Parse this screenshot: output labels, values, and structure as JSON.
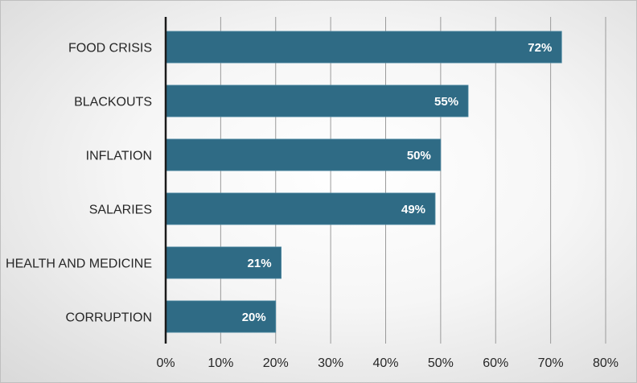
{
  "chart_data": {
    "type": "bar",
    "orientation": "horizontal",
    "title": "",
    "xlabel": "",
    "ylabel": "",
    "categories": [
      "FOOD CRISIS",
      "BLACKOUTS",
      "INFLATION",
      "SALARIES",
      "HEALTH AND MEDICINE",
      "CORRUPTION"
    ],
    "values": [
      72,
      55,
      50,
      49,
      21,
      20
    ],
    "data_labels": [
      "72%",
      "55%",
      "50%",
      "49%",
      "21%",
      "20%"
    ],
    "xlim": [
      0,
      80
    ],
    "x_ticks": [
      0,
      10,
      20,
      30,
      40,
      50,
      60,
      70,
      80
    ],
    "x_tick_labels": [
      "0%",
      "10%",
      "20%",
      "30%",
      "40%",
      "50%",
      "60%",
      "70%",
      "80%"
    ],
    "grid": "vertical",
    "legend": "none",
    "colors": {
      "bar": "#2f6b85",
      "bar_stroke": "#4f8aa3",
      "grid": "#9a9a9a",
      "axis": "#1a1a1a",
      "data_label": "#ffffff"
    }
  }
}
